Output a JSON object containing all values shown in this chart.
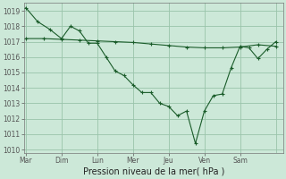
{
  "xlabel": "Pression niveau de la mer( hPa )",
  "bg_color": "#cce8d8",
  "grid_color": "#99c4aa",
  "line_color": "#1a5c2a",
  "x_labels": [
    "Mar",
    "Dim",
    "Lun",
    "Mer",
    "Jeu",
    "Ven",
    "Sam"
  ],
  "x_tick_pos": [
    0,
    1,
    2,
    3,
    4,
    5,
    6
  ],
  "ylim": [
    1009.8,
    1019.5
  ],
  "yticks": [
    1010,
    1011,
    1012,
    1013,
    1014,
    1015,
    1016,
    1017,
    1018,
    1019
  ],
  "xlim": [
    -0.05,
    7.2
  ],
  "series1_x": [
    0.0,
    0.33,
    0.67,
    1.0,
    1.25,
    1.5,
    1.75,
    2.0,
    2.25,
    2.5,
    2.75,
    3.0,
    3.25,
    3.5,
    3.75,
    4.0,
    4.25,
    4.5,
    4.75,
    5.0,
    5.25,
    5.5,
    5.75,
    6.0,
    6.25,
    6.5,
    6.75,
    7.0
  ],
  "series1_y": [
    1019.2,
    1018.3,
    1017.8,
    1017.2,
    1018.0,
    1017.7,
    1016.9,
    1016.9,
    1016.0,
    1015.1,
    1014.8,
    1014.2,
    1013.7,
    1013.7,
    1013.0,
    1012.8,
    1012.2,
    1012.5,
    1010.4,
    1012.5,
    1013.5,
    1013.6,
    1015.3,
    1016.7,
    1016.6,
    1015.9,
    1016.5,
    1017.0
  ],
  "series2_x": [
    0.0,
    0.5,
    1.0,
    1.5,
    2.0,
    2.5,
    3.0,
    3.5,
    4.0,
    4.5,
    5.0,
    5.5,
    6.0,
    6.5,
    7.0
  ],
  "series2_y": [
    1017.2,
    1017.2,
    1017.15,
    1017.1,
    1017.05,
    1017.0,
    1016.95,
    1016.85,
    1016.75,
    1016.65,
    1016.6,
    1016.6,
    1016.65,
    1016.8,
    1016.7
  ],
  "xlabel_fontsize": 7,
  "tick_fontsize": 5.5
}
